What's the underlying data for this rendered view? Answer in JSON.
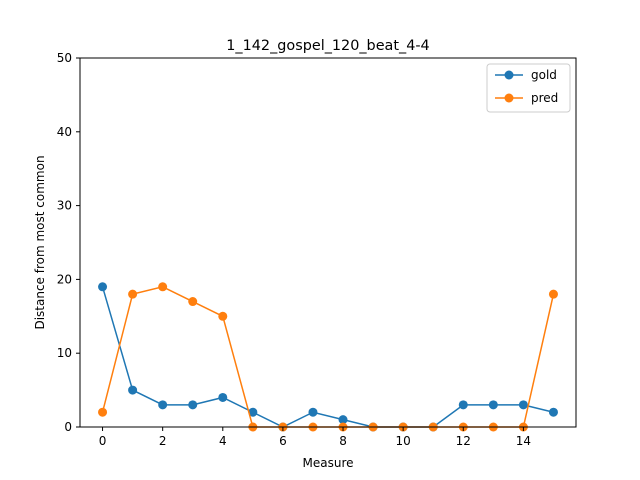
{
  "chart_data": {
    "type": "line",
    "title": "1_142_gospel_120_beat_4-4",
    "xlabel": "Measure",
    "ylabel": "Distance from most common",
    "xlim": [
      -0.75,
      15.75
    ],
    "ylim": [
      0,
      50
    ],
    "x_ticks": [
      0,
      2,
      4,
      6,
      8,
      10,
      12,
      14
    ],
    "y_ticks": [
      0,
      10,
      20,
      30,
      40,
      50
    ],
    "grid": false,
    "legend_position": "top-right",
    "x": [
      0,
      1,
      2,
      3,
      4,
      5,
      6,
      7,
      8,
      9,
      10,
      11,
      12,
      13,
      14,
      15
    ],
    "series": [
      {
        "name": "gold",
        "color": "#1f77b4",
        "values": [
          19,
          5,
          3,
          3,
          4,
          2,
          0,
          2,
          1,
          0,
          0,
          0,
          3,
          3,
          3,
          2
        ]
      },
      {
        "name": "pred",
        "color": "#ff7f0e",
        "values": [
          2,
          18,
          19,
          17,
          15,
          0,
          0,
          0,
          0,
          0,
          0,
          0,
          0,
          0,
          0,
          18
        ]
      }
    ]
  }
}
